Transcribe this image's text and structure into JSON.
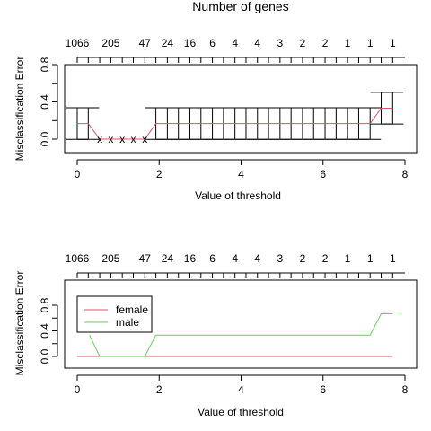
{
  "chart_data": [
    {
      "type": "line",
      "title": "Number of genes",
      "xlabel": "Value of threshold",
      "ylabel": "Misclassification Error",
      "xlim": [
        0,
        8
      ],
      "ylim": [
        0,
        0.8
      ],
      "x_ticks": [
        "0",
        "2",
        "4",
        "6",
        "8"
      ],
      "y_ticks": [
        "0.0",
        "0.4",
        "0.8"
      ],
      "top_axis_labels": [
        "1066",
        "205",
        "47",
        "24",
        "16",
        "6",
        "4",
        "4",
        "3",
        "2",
        "2",
        "1",
        "1",
        "1"
      ],
      "top_axis_label_positions": [
        0.0,
        0.82,
        1.65,
        2.2,
        2.75,
        3.3,
        3.85,
        4.4,
        4.95,
        5.5,
        6.05,
        6.6,
        7.15,
        7.7
      ],
      "error_bar_half_width": 0.17,
      "series": [
        {
          "x": [
            0.0,
            0.27,
            0.55,
            0.82,
            1.1,
            1.37,
            1.65,
            1.92,
            2.2,
            2.47,
            2.75,
            3.02,
            3.3,
            3.57,
            3.85,
            4.12,
            4.4,
            4.67,
            4.95,
            5.22,
            5.5,
            5.77,
            6.05,
            6.32,
            6.6,
            6.87,
            7.15,
            7.42,
            7.7
          ],
          "y": [
            0.167,
            0.167,
            0.0,
            0.0,
            0.0,
            0.0,
            0.0,
            0.167,
            0.167,
            0.167,
            0.167,
            0.167,
            0.167,
            0.167,
            0.167,
            0.167,
            0.167,
            0.167,
            0.167,
            0.167,
            0.167,
            0.167,
            0.167,
            0.167,
            0.167,
            0.167,
            0.167,
            0.333,
            0.333
          ],
          "color": "#DF536B"
        }
      ],
      "zero_error_marker": "x"
    },
    {
      "type": "line",
      "xlabel": "Value of threshold",
      "ylabel": "Misclassification Error",
      "xlim": [
        0,
        8
      ],
      "ylim": [
        0,
        0.8
      ],
      "x_ticks": [
        "0",
        "2",
        "4",
        "6",
        "8"
      ],
      "y_ticks": [
        "0.0",
        "0.4",
        "0.8"
      ],
      "top_axis_labels": [
        "1066",
        "205",
        "47",
        "24",
        "16",
        "6",
        "4",
        "4",
        "3",
        "2",
        "2",
        "1",
        "1",
        "1"
      ],
      "top_axis_label_positions": [
        0.0,
        0.82,
        1.65,
        2.2,
        2.75,
        3.3,
        3.85,
        4.4,
        4.95,
        5.5,
        6.05,
        6.6,
        7.15,
        7.7
      ],
      "legend_placement": "top-left",
      "series": [
        {
          "name": "female",
          "color": "#DF536B",
          "x": [
            0.0,
            7.7
          ],
          "y": [
            0.0,
            0.0
          ]
        },
        {
          "name": "male",
          "color": "#61D04F",
          "x": [
            0.3,
            0.55,
            1.65,
            1.92,
            7.15,
            7.42,
            7.7
          ],
          "y": [
            0.333,
            0.0,
            0.0,
            0.333,
            0.333,
            0.667,
            0.667
          ]
        }
      ]
    }
  ]
}
